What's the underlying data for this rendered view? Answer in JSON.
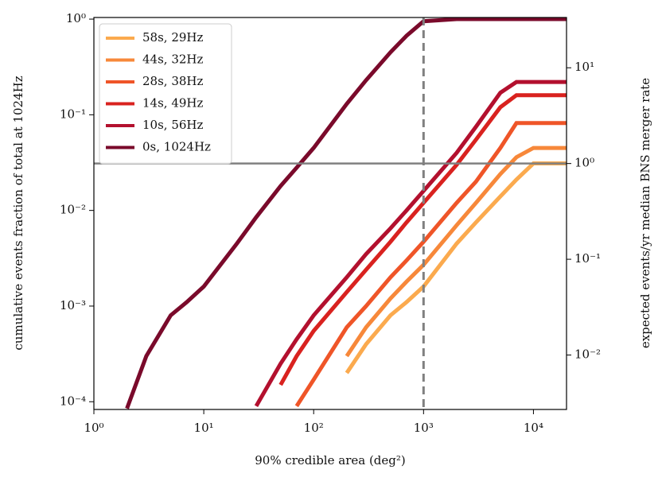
{
  "chart_data": {
    "type": "line",
    "xlabel": "90% credible area (deg²)",
    "ylabel": "cumulative events fraction of total at 1024Hz",
    "y2label": "expected events/yr median BNS merger rate",
    "log_x": true,
    "log_y": true,
    "legend": "upper left",
    "x": [
      2,
      3,
      5,
      7,
      10,
      20,
      30,
      50,
      70,
      100,
      200,
      300,
      500,
      700,
      1000,
      2000,
      3000,
      5000,
      7000,
      10000,
      20000
    ],
    "series": [
      {
        "name": "58s, 29Hz",
        "color": "#fbaa4e",
        "values": [
          null,
          null,
          null,
          null,
          null,
          null,
          null,
          null,
          null,
          null,
          0.0002,
          0.0004,
          0.0008,
          0.0011,
          0.0016,
          0.0045,
          0.0075,
          0.014,
          0.021,
          0.031,
          0.031
        ]
      },
      {
        "name": "44s, 32Hz",
        "color": "#f7883a",
        "values": [
          null,
          null,
          null,
          null,
          null,
          null,
          null,
          null,
          null,
          null,
          0.0003,
          0.0006,
          0.0012,
          0.0018,
          0.0027,
          0.007,
          0.012,
          0.024,
          0.036,
          0.045,
          0.045
        ]
      },
      {
        "name": "28s, 38Hz",
        "color": "#ef5528",
        "values": [
          null,
          null,
          null,
          null,
          null,
          null,
          null,
          null,
          9e-05,
          0.00017,
          0.0006,
          0.001,
          0.002,
          0.003,
          0.0047,
          0.012,
          0.02,
          0.045,
          0.082,
          0.082,
          0.082
        ]
      },
      {
        "name": "14s, 49Hz",
        "color": "#d9221f",
        "values": [
          null,
          null,
          null,
          null,
          null,
          null,
          null,
          0.00015,
          0.0003,
          0.00055,
          0.0014,
          0.0024,
          0.0047,
          0.0075,
          0.012,
          0.03,
          0.055,
          0.12,
          0.16,
          0.16,
          0.16
        ]
      },
      {
        "name": "10s, 56Hz",
        "color": "#b3102e",
        "values": [
          null,
          null,
          null,
          null,
          null,
          null,
          9e-05,
          0.00025,
          0.00045,
          0.0008,
          0.002,
          0.0035,
          0.0065,
          0.01,
          0.016,
          0.04,
          0.075,
          0.17,
          0.22,
          0.22,
          0.22
        ]
      },
      {
        "name": "0s, 1024Hz",
        "color": "#7a0a2b",
        "values": [
          8.5e-05,
          0.0003,
          0.0008,
          0.0011,
          0.0016,
          0.0045,
          0.0085,
          0.018,
          0.028,
          0.045,
          0.13,
          0.23,
          0.45,
          0.67,
          0.95,
          1,
          1,
          1,
          1,
          1,
          1
        ]
      }
    ],
    "xlim": [
      1,
      20000
    ],
    "xticks": [
      {
        "value": 1,
        "label": "10⁰"
      },
      {
        "value": 10,
        "label": "10¹"
      },
      {
        "value": 100,
        "label": "10²"
      },
      {
        "value": 1000,
        "label": "10³"
      },
      {
        "value": 10000,
        "label": "10⁴"
      }
    ],
    "ylim": [
      8.3e-05,
      1.04
    ],
    "yticks": [
      {
        "value": 0.0001,
        "label": "10⁻⁴"
      },
      {
        "value": 0.001,
        "label": "10⁻³"
      },
      {
        "value": 0.01,
        "label": "10⁻²"
      },
      {
        "value": 0.1,
        "label": "10⁻¹"
      },
      {
        "value": 1,
        "label": "10⁰"
      }
    ],
    "y2lim": [
      0.0027,
      33.5
    ],
    "y2ticks": [
      {
        "value": 0.01,
        "label": "10⁻²"
      },
      {
        "value": 0.1,
        "label": "10⁻¹"
      },
      {
        "value": 1,
        "label": "10⁰"
      },
      {
        "value": 10,
        "label": "10¹"
      }
    ],
    "hline_y2": 1,
    "hline_color": "#808080",
    "vline_x": 1000,
    "vline_color": "#808080"
  }
}
